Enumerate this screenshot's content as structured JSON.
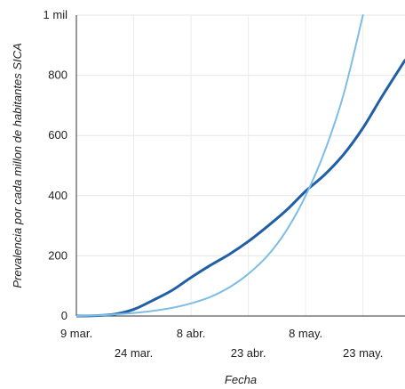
{
  "chart_data": {
    "type": "line",
    "xlabel": "Fecha",
    "ylabel": "Prevalencia por cada millon de habitantes SICA",
    "ylim": [
      0,
      1000
    ],
    "xlim": [
      "2020-03-09",
      "2020-06-03"
    ],
    "grid": true,
    "y_ticks": [
      {
        "value": 0,
        "label": "0"
      },
      {
        "value": 200,
        "label": "200"
      },
      {
        "value": 400,
        "label": "400"
      },
      {
        "value": 600,
        "label": "600"
      },
      {
        "value": 800,
        "label": "800"
      },
      {
        "value": 1000,
        "label": "1 mil"
      }
    ],
    "x_ticks": [
      {
        "date": "2020-03-09",
        "label": "9 mar.",
        "row": 1
      },
      {
        "date": "2020-03-24",
        "label": "24 mar.",
        "row": 2
      },
      {
        "date": "2020-04-08",
        "label": "8 abr.",
        "row": 1
      },
      {
        "date": "2020-04-23",
        "label": "23 abr.",
        "row": 2
      },
      {
        "date": "2020-05-08",
        "label": "8 may.",
        "row": 1
      },
      {
        "date": "2020-05-23",
        "label": "23 may.",
        "row": 2
      }
    ],
    "series": [
      {
        "color": "#1f5fa6",
        "width": 3,
        "points": [
          [
            "2020-03-09",
            0
          ],
          [
            "2020-03-14",
            1
          ],
          [
            "2020-03-19",
            6
          ],
          [
            "2020-03-24",
            22
          ],
          [
            "2020-03-29",
            52
          ],
          [
            "2020-04-03",
            85
          ],
          [
            "2020-04-08",
            128
          ],
          [
            "2020-04-13",
            168
          ],
          [
            "2020-04-18",
            205
          ],
          [
            "2020-04-23",
            248
          ],
          [
            "2020-04-28",
            298
          ],
          [
            "2020-05-03",
            352
          ],
          [
            "2020-05-08",
            415
          ],
          [
            "2020-05-13",
            470
          ],
          [
            "2020-05-18",
            538
          ],
          [
            "2020-05-23",
            625
          ],
          [
            "2020-05-28",
            730
          ],
          [
            "2020-06-03",
            850
          ]
        ]
      },
      {
        "color": "#7dbde6",
        "width": 2,
        "points": [
          [
            "2020-03-09",
            0
          ],
          [
            "2020-03-14",
            2
          ],
          [
            "2020-03-19",
            5
          ],
          [
            "2020-03-24",
            10
          ],
          [
            "2020-03-29",
            17
          ],
          [
            "2020-04-03",
            27
          ],
          [
            "2020-04-08",
            42
          ],
          [
            "2020-04-13",
            63
          ],
          [
            "2020-04-18",
            95
          ],
          [
            "2020-04-23",
            140
          ],
          [
            "2020-04-28",
            200
          ],
          [
            "2020-05-03",
            285
          ],
          [
            "2020-05-08",
            400
          ],
          [
            "2020-05-13",
            548
          ],
          [
            "2020-05-18",
            740
          ],
          [
            "2020-05-23",
            1000
          ]
        ]
      }
    ]
  }
}
